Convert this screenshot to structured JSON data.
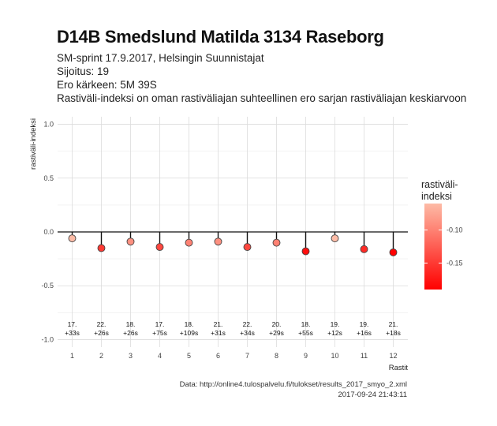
{
  "header": {
    "title": "D14B Smedslund Matilda 3134 Raseborg",
    "subtitle_lines": [
      "SM-sprint 17.9.2017, Helsingin Suunnistajat",
      "Sijoitus: 19",
      "Ero kärkeen: 5M 39S",
      "Rastiväli-indeksi on oman rastiväliajan suhteellinen ero sarjan rastiväliajan keskiarvoon"
    ]
  },
  "caption": {
    "source": "Data: http://online4.tulospalvelu.fi/tulokset/results_2017_smyo_2.xml",
    "timestamp": "2017-09-24 21:43:11"
  },
  "chart_data": {
    "type": "scatter",
    "xlabel": "Rastit",
    "ylabel": "rastiväli-indeksi",
    "x": [
      1,
      2,
      3,
      4,
      5,
      6,
      7,
      8,
      9,
      10,
      11,
      12
    ],
    "y": [
      -0.06,
      -0.15,
      -0.09,
      -0.14,
      -0.1,
      -0.09,
      -0.14,
      -0.1,
      -0.18,
      -0.06,
      -0.16,
      -0.19
    ],
    "xlim": [
      0.5,
      12.5
    ],
    "ylim": [
      -1.0,
      1.0
    ],
    "xticks": [
      "1",
      "2",
      "3",
      "4",
      "5",
      "6",
      "7",
      "8",
      "9",
      "10",
      "11",
      "12"
    ],
    "yticks": [
      "-1.0",
      "-0.5",
      "0.0",
      "0.5",
      "1.0"
    ],
    "point_labels": [
      [
        "17.",
        "+33s"
      ],
      [
        "22.",
        "+26s"
      ],
      [
        "18.",
        "+26s"
      ],
      [
        "17.",
        "+75s"
      ],
      [
        "18.",
        "+109s"
      ],
      [
        "21.",
        "+31s"
      ],
      [
        "22.",
        "+34s"
      ],
      [
        "20.",
        "+29s"
      ],
      [
        "18.",
        "+55s"
      ],
      [
        "19.",
        "+12s"
      ],
      [
        "19.",
        "+16s"
      ],
      [
        "21.",
        "+18s"
      ]
    ],
    "grid": true,
    "legend": {
      "title_lines": [
        "rastiväli-",
        "indeksi"
      ],
      "placement": "right",
      "ticks": [
        "-0.10",
        "-0.15"
      ],
      "range": [
        -0.19,
        -0.06
      ],
      "tick_values": [
        -0.1,
        -0.15
      ],
      "color_high": "#fdbba6",
      "color_low": "#ff0000"
    }
  }
}
